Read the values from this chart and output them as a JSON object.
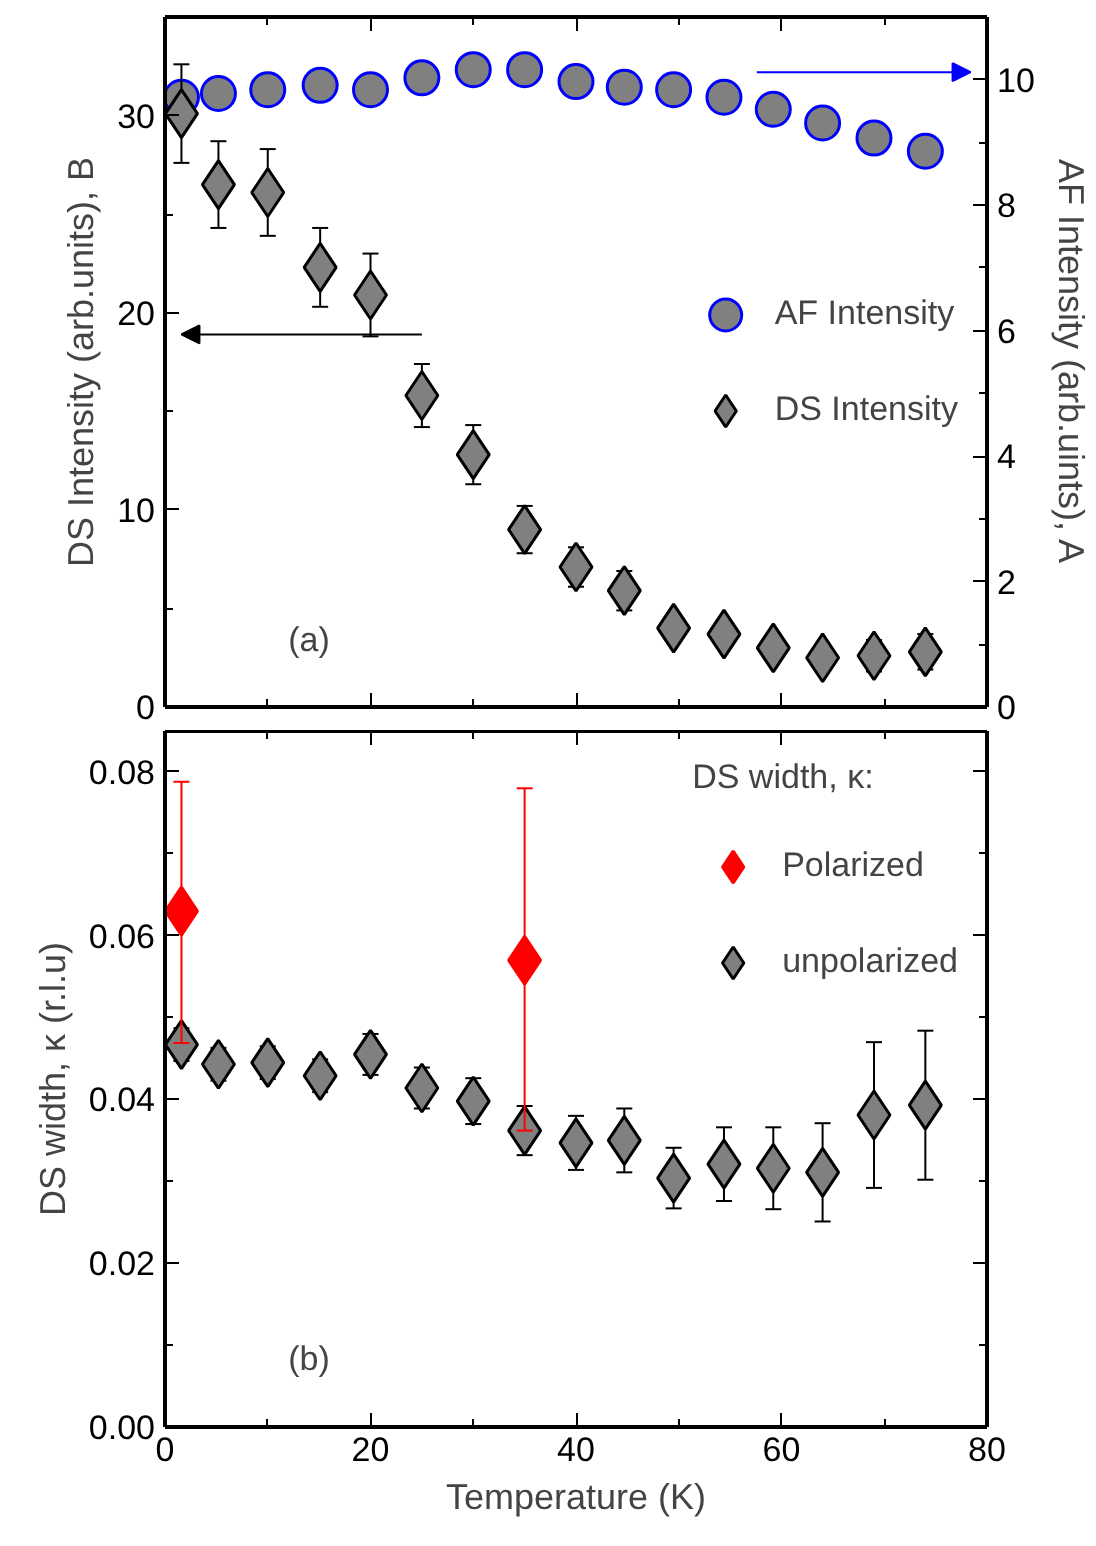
{
  "chart_data": [
    {
      "type": "scatter",
      "ylabel": "DS Intensity (arb.units), B",
      "y2label": "AF Intensity (arb.uints), A",
      "xlim": [
        0,
        80
      ],
      "xticks": [
        0,
        20,
        40,
        60,
        80
      ],
      "ylim": [
        0,
        35
      ],
      "yticks": [
        0,
        10,
        20,
        30
      ],
      "y2lim": [
        0,
        11
      ],
      "y2ticks": [
        0,
        2,
        4,
        6,
        8,
        10
      ],
      "tick_labels": "y",
      "grid": false,
      "legend": "right",
      "marker": "diamond",
      "annotations": [
        "(a)"
      ],
      "x": [
        1.6,
        5.2,
        10,
        15.1,
        20,
        25,
        30,
        35,
        40,
        44.7,
        49.5,
        54.4,
        59.2,
        64,
        69,
        74
      ],
      "series": [
        {
          "name": "AF Intensity",
          "color": "#0000ff",
          "marker": "circle",
          "axis": "y2",
          "values": [
            9.72,
            9.78,
            9.84,
            9.91,
            9.84,
            10.03,
            10.16,
            10.16,
            9.97,
            9.88,
            9.84,
            9.72,
            9.53,
            9.31,
            9.07,
            8.86
          ]
        },
        {
          "name": "DS Intensity",
          "color": "#000000",
          "marker": "diamond",
          "axis": "y",
          "values": [
            30.1,
            26.5,
            26.1,
            22.3,
            20.9,
            15.8,
            12.8,
            9.0,
            7.1,
            5.9,
            4.0,
            3.7,
            3.0,
            2.5,
            2.6,
            2.8
          ],
          "errors": [
            2.5,
            2.2,
            2.2,
            2.0,
            2.1,
            1.6,
            1.5,
            1.2,
            1.0,
            1.0,
            0.6,
            0.6,
            0.6,
            0.6,
            0.8,
            0.9
          ]
        }
      ]
    },
    {
      "type": "scatter",
      "xlabel": "Temperature (K)",
      "ylabel": "DS width, κ (r.l.u)",
      "legend_title": "DS width, κ:",
      "xlim": [
        0,
        80
      ],
      "xticks": [
        0,
        20,
        40,
        60,
        80
      ],
      "ylim": [
        0,
        0.085
      ],
      "yticks": [
        {
          "value": 0,
          "label": "0.00"
        },
        {
          "value": 0.02,
          "label": "0.02"
        },
        {
          "value": 0.04,
          "label": "0.04"
        },
        {
          "value": 0.06,
          "label": "0.06"
        },
        {
          "value": 0.08,
          "label": "0.08"
        }
      ],
      "grid": false,
      "legend": "top right",
      "marker": "diamond",
      "annotations": [
        "(b)"
      ],
      "series": [
        {
          "name": "Polarized",
          "color": "#ff0000",
          "x": [
            1.6,
            35
          ],
          "values": [
            0.063,
            0.057
          ],
          "errors": [
            [
              0.0469,
              0.0788
            ],
            [
              0.0362,
              0.078
            ]
          ]
        },
        {
          "name": "unpolarized",
          "color": "#000000",
          "x": [
            1.6,
            5.2,
            10,
            15.1,
            20,
            25,
            30,
            35,
            40,
            44.7,
            49.5,
            54.4,
            59.2,
            64,
            69,
            74
          ],
          "values": [
            0.0467,
            0.0443,
            0.0445,
            0.0429,
            0.0455,
            0.0414,
            0.0398,
            0.0362,
            0.0347,
            0.035,
            0.0304,
            0.0321,
            0.0316,
            0.0311,
            0.0381,
            0.0393
          ],
          "errors": [
            0.002,
            0.002,
            0.002,
            0.002,
            0.0025,
            0.0025,
            0.0028,
            0.003,
            0.0033,
            0.0039,
            0.0037,
            0.0045,
            0.005,
            0.006,
            0.0089,
            0.0091
          ]
        }
      ]
    }
  ]
}
